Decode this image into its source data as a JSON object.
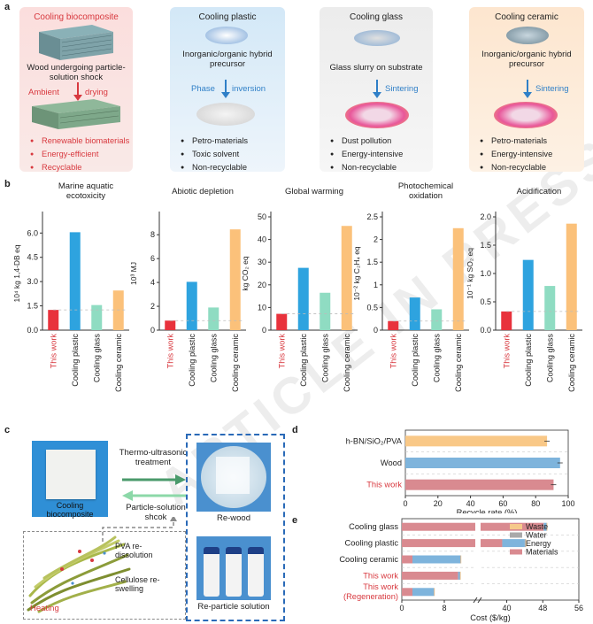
{
  "panel_a": {
    "label": "a",
    "columns": [
      {
        "title": "Cooling biocomposite",
        "desc": "Wood undergoing particle-solution shock",
        "process_left": "Ambient",
        "process_right": "drying",
        "bullets": [
          "Renewable biomaterials",
          "Energy-efficient",
          "Recyclable"
        ]
      },
      {
        "title": "Cooling plastic",
        "desc": "Inorganic/organic hybrid precursor",
        "process_left": "Phase",
        "process_right": "inversion",
        "bullets": [
          "Petro-materials",
          "Toxic solvent",
          "Non-recyclable"
        ]
      },
      {
        "title": "Cooling glass",
        "desc": "Glass slurry on substrate",
        "process_right": "Sintering",
        "bullets": [
          "Dust pollution",
          "Energy-intensive",
          "Non-recyclable"
        ]
      },
      {
        "title": "Cooling ceramic",
        "desc": "Inorganic/organic hybrid precursor",
        "process_right": "Sintering",
        "bullets": [
          "Petro-materials",
          "Energy-intensive",
          "Non-recyclable"
        ]
      }
    ]
  },
  "panel_b_label": "b",
  "panel_c": {
    "label": "c",
    "sample_label": "Cooling biocomposite",
    "arrow_top": "Thermo-ultrasonic treatment",
    "arrow_bottom": "Particle-solution shcok",
    "rewood": "Re-wood",
    "pva": "PVA re-dissolution",
    "cellulose": "Cellulose re-swelling",
    "heating": "Heating",
    "reparticle": "Re-particle solution"
  },
  "panel_d_label": "d",
  "panel_e_label": "e",
  "colors": {
    "red": "#e8323c",
    "blue": "#2ea3df",
    "green": "#8fdcc2",
    "orange": "#fbc17a",
    "d_orange": "#f9c887",
    "d_blue": "#7eb4dc",
    "d_red": "#d98a90",
    "waste": "#f6c98a",
    "water": "#a9a9a9",
    "energy": "#7eb4dc",
    "materials": "#d98a90"
  },
  "chart_data": [
    {
      "type": "bar",
      "title": "Marine aquatic ecotoxicity",
      "ylabel": "10⁴ kg 1,4-DB eq",
      "categories": [
        "This work",
        "Cooling plastic",
        "Cooling glass",
        "Cooling ceramic"
      ],
      "values": [
        1.25,
        6.05,
        1.55,
        2.45
      ],
      "ylim": [
        0,
        7
      ],
      "yticks": [
        "0.0",
        "1.5",
        "3.0",
        "4.5",
        "6.0"
      ],
      "ytickvals": [
        0,
        1.5,
        3,
        4.5,
        6
      ]
    },
    {
      "type": "bar",
      "title": "Abiotic depletion",
      "ylabel": "10³ MJ",
      "categories": [
        "This work",
        "Cooling plastic",
        "Cooling glass",
        "Cooling ceramic"
      ],
      "values": [
        0.8,
        4.05,
        1.9,
        8.45
      ],
      "ylim": [
        0,
        9.5
      ],
      "yticks": [
        "0",
        "2",
        "4",
        "6",
        "8"
      ],
      "ytickvals": [
        0,
        2,
        4,
        6,
        8
      ]
    },
    {
      "type": "bar",
      "title": "Global warming",
      "ylabel": "kg CO₂ eq",
      "categories": [
        "This work",
        "Cooling plastic",
        "Cooling glass",
        "Cooling ceramic"
      ],
      "values": [
        7.2,
        27.5,
        16.5,
        46.0
      ],
      "ylim": [
        0,
        50
      ],
      "yticks": [
        "0",
        "10",
        "20",
        "30",
        "40",
        "50"
      ],
      "ytickvals": [
        0,
        10,
        20,
        30,
        40,
        50
      ]
    },
    {
      "type": "bar",
      "title": "Photochemical oxidation",
      "ylabel": "10⁻² kg C₂H₄ eq",
      "categories": [
        "This work",
        "Cooling plastic",
        "Cooling glass",
        "Cooling ceramic"
      ],
      "values": [
        0.2,
        0.72,
        0.46,
        2.25
      ],
      "ylim": [
        0,
        2.5
      ],
      "yticks": [
        "0",
        "0.5",
        "1",
        "1.5",
        "2",
        "2.5"
      ],
      "ytickvals": [
        0,
        0.5,
        1,
        1.5,
        2,
        2.5
      ]
    },
    {
      "type": "bar",
      "title": "Acidification",
      "ylabel": "10⁻¹ kg SO₂ eq",
      "categories": [
        "This work",
        "Cooling plastic",
        "Cooling glass",
        "Cooling ceramic"
      ],
      "values": [
        0.33,
        1.24,
        0.78,
        1.88
      ],
      "ylim": [
        0,
        2.0
      ],
      "yticks": [
        "0.0",
        "0.5",
        "1.0",
        "1.5",
        "2.0"
      ],
      "ytickvals": [
        0,
        0.5,
        1,
        1.5,
        2
      ]
    },
    {
      "type": "bar",
      "orientation": "horizontal",
      "xlabel": "Recycle rate (%)",
      "categories": [
        "h-BN/SiO₂/PVA",
        "Wood",
        "This work"
      ],
      "values": [
        87,
        95,
        91
      ],
      "xlim": [
        0,
        100
      ],
      "xticks": [
        "0",
        "20",
        "40",
        "60",
        "80",
        "100"
      ],
      "xtickvals": [
        0,
        20,
        40,
        60,
        80,
        100
      ]
    },
    {
      "type": "bar",
      "orientation": "horizontal",
      "stacked": true,
      "xlabel": "Cost ($/kg)",
      "categories": [
        "Cooling glass",
        "Cooling plastic",
        "Cooling ceramic",
        "This work",
        "This work (Regeneration)"
      ],
      "xticks": [
        "0",
        "8",
        "40",
        "48",
        "56"
      ],
      "xtickvals": [
        0,
        8,
        40,
        48,
        56
      ],
      "axis_break": true,
      "series": [
        {
          "name": "Materials",
          "values": [
            48.2,
            39.0,
            2.0,
            10.6,
            2.0
          ]
        },
        {
          "name": "Energy",
          "values": [
            0.6,
            5.0,
            9.0,
            0.3,
            4.0
          ]
        },
        {
          "name": "Water",
          "values": [
            0.1,
            0.2,
            0.1,
            0.1,
            0.1
          ]
        },
        {
          "name": "Waste",
          "values": [
            0.1,
            0.1,
            0.1,
            0.1,
            0.1
          ]
        }
      ]
    }
  ],
  "watermark": "ARTICLE IN PRESS"
}
